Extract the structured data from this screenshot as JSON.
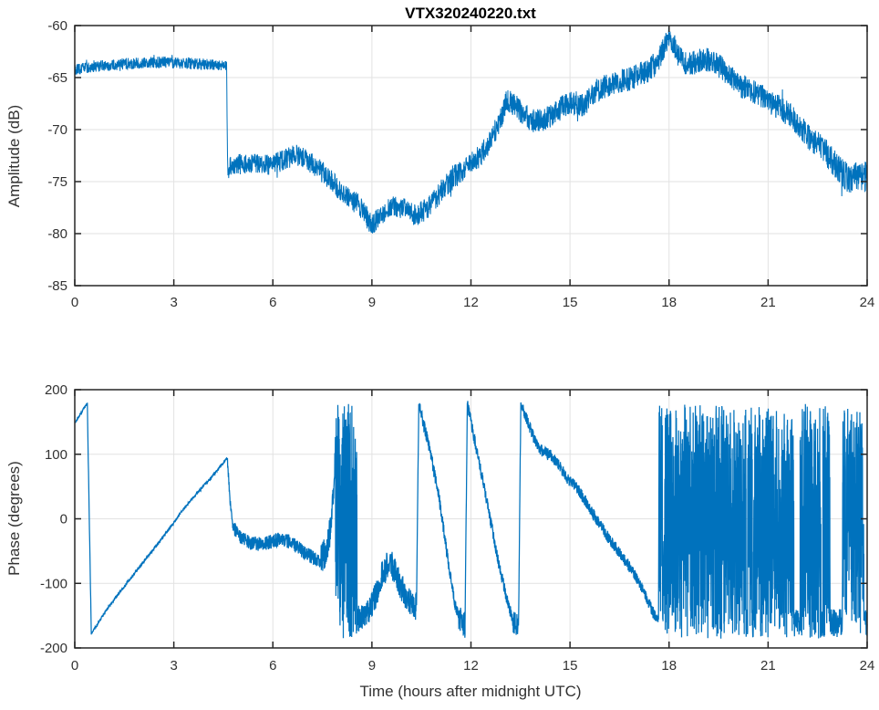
{
  "figure": {
    "title": "VTX320240220.txt",
    "background": "#ffffff",
    "trace_color": "#0072BD",
    "grid_color": "#e2e2e2",
    "axis_color": "#262626",
    "label_color": "#323232"
  },
  "chart_data": [
    {
      "type": "line",
      "title": "VTX320240220.txt",
      "xlabel": "",
      "ylabel": "Amplitude (dB)",
      "xlim": [
        0,
        24
      ],
      "ylim": [
        -85,
        -60
      ],
      "xticks": [
        "0",
        "3",
        "6",
        "9",
        "12",
        "15",
        "18",
        "21",
        "24"
      ],
      "xtick_values": [
        0,
        3,
        6,
        9,
        12,
        15,
        18,
        21,
        24
      ],
      "yticks": [
        "-85",
        "-80",
        "-75",
        "-70",
        "-65",
        "-60"
      ],
      "ytick_values": [
        -85,
        -80,
        -75,
        -70,
        -65,
        -60
      ],
      "grid": true,
      "legend": "none",
      "series_name": "amplitude_dB_vs_hours_UTC",
      "keypoints": [
        [
          0,
          -64.3
        ],
        [
          0.3,
          -64.1
        ],
        [
          0.8,
          -63.9
        ],
        [
          1.4,
          -63.7
        ],
        [
          2.0,
          -63.6
        ],
        [
          2.6,
          -63.5
        ],
        [
          3.2,
          -63.6
        ],
        [
          3.8,
          -63.7
        ],
        [
          4.3,
          -63.8
        ],
        [
          4.6,
          -63.9
        ],
        [
          4.63,
          -74.2
        ],
        [
          4.75,
          -73.4
        ],
        [
          5.2,
          -73.3
        ],
        [
          5.8,
          -73.4
        ],
        [
          6.3,
          -73.0
        ],
        [
          6.7,
          -72.4
        ],
        [
          7.0,
          -72.9
        ],
        [
          7.4,
          -73.8
        ],
        [
          7.8,
          -75.0
        ],
        [
          8.2,
          -76.4
        ],
        [
          8.6,
          -77.2
        ],
        [
          9.0,
          -79.2
        ],
        [
          9.25,
          -78.2
        ],
        [
          9.6,
          -77.3
        ],
        [
          10.0,
          -77.6
        ],
        [
          10.35,
          -78.3
        ],
        [
          10.7,
          -77.5
        ],
        [
          11.1,
          -75.9
        ],
        [
          11.5,
          -74.5
        ],
        [
          12.0,
          -73.4
        ],
        [
          12.4,
          -72.0
        ],
        [
          12.8,
          -69.8
        ],
        [
          13.1,
          -67.1
        ],
        [
          13.3,
          -67.6
        ],
        [
          13.6,
          -68.6
        ],
        [
          13.9,
          -69.2
        ],
        [
          14.2,
          -69.2
        ],
        [
          14.6,
          -68.2
        ],
        [
          15.0,
          -67.4
        ],
        [
          15.4,
          -67.6
        ],
        [
          15.8,
          -66.3
        ],
        [
          16.2,
          -65.7
        ],
        [
          16.6,
          -65.3
        ],
        [
          17.0,
          -64.9
        ],
        [
          17.4,
          -64.2
        ],
        [
          17.7,
          -63.4
        ],
        [
          18.0,
          -61.0
        ],
        [
          18.3,
          -62.9
        ],
        [
          18.55,
          -63.9
        ],
        [
          19.0,
          -63.2
        ],
        [
          19.4,
          -63.5
        ],
        [
          19.8,
          -64.8
        ],
        [
          20.2,
          -65.8
        ],
        [
          20.7,
          -66.6
        ],
        [
          21.2,
          -67.6
        ],
        [
          21.7,
          -68.7
        ],
        [
          22.2,
          -70.6
        ],
        [
          22.7,
          -72.0
        ],
        [
          23.1,
          -73.6
        ],
        [
          23.45,
          -74.8
        ],
        [
          23.7,
          -74.3
        ],
        [
          24,
          -74.6
        ]
      ],
      "noise_envelope_dB": [
        [
          0,
          0.55
        ],
        [
          4.58,
          0.55
        ],
        [
          4.68,
          1.0
        ],
        [
          9,
          1.05
        ],
        [
          13,
          1.15
        ],
        [
          18,
          1.2
        ],
        [
          22,
          1.2
        ],
        [
          24,
          1.5
        ]
      ]
    },
    {
      "type": "line",
      "title": "",
      "xlabel": "Time (hours after midnight UTC)",
      "ylabel": "Phase (degrees)",
      "xlim": [
        0,
        24
      ],
      "ylim": [
        -200,
        200
      ],
      "xticks": [
        "0",
        "3",
        "6",
        "9",
        "12",
        "15",
        "18",
        "21",
        "24"
      ],
      "xtick_values": [
        0,
        3,
        6,
        9,
        12,
        15,
        18,
        21,
        24
      ],
      "yticks": [
        "-200",
        "-100",
        "0",
        "100",
        "200"
      ],
      "ytick_values": [
        -200,
        -100,
        0,
        100,
        200
      ],
      "grid": true,
      "legend": "none",
      "series_name": "phase_degrees_vs_hours_UTC",
      "segments": [
        {
          "kind": "line",
          "noise": 2,
          "pts": [
            [
              0.02,
              150
            ],
            [
              0.38,
              179
            ]
          ]
        },
        {
          "kind": "line",
          "noise": 1,
          "pts": [
            [
              0.38,
              179
            ],
            [
              0.5,
              -178
            ]
          ]
        },
        {
          "kind": "line",
          "noise": 2,
          "pts": [
            [
              0.5,
              -178
            ],
            [
              1.0,
              -138
            ],
            [
              1.8,
              -85
            ],
            [
              2.6,
              -33
            ],
            [
              3.3,
              15
            ],
            [
              3.5,
              28
            ],
            [
              4.1,
              62
            ],
            [
              4.62,
              94
            ]
          ]
        },
        {
          "kind": "line",
          "noise": 6,
          "pts": [
            [
              4.62,
              94
            ],
            [
              4.7,
              30
            ],
            [
              4.78,
              -12
            ]
          ]
        },
        {
          "kind": "line",
          "noise": 11,
          "pts": [
            [
              4.78,
              -12
            ],
            [
              5.0,
              -28
            ],
            [
              5.3,
              -37
            ],
            [
              5.7,
              -40
            ],
            [
              6.0,
              -34
            ],
            [
              6.3,
              -31
            ],
            [
              6.6,
              -38
            ],
            [
              6.9,
              -50
            ],
            [
              7.2,
              -60
            ],
            [
              7.45,
              -66
            ]
          ]
        },
        {
          "kind": "line",
          "noise": 24,
          "pts": [
            [
              7.45,
              -66
            ],
            [
              7.62,
              -48
            ],
            [
              7.75,
              -15
            ],
            [
              7.84,
              45
            ],
            [
              7.9,
              115
            ]
          ]
        },
        {
          "kind": "wrap",
          "t": [
            7.9,
            8.55
          ]
        },
        {
          "kind": "line",
          "noise": 22,
          "pts": [
            [
              8.55,
              -158
            ],
            [
              8.85,
              -146
            ],
            [
              9.05,
              -128
            ],
            [
              9.3,
              -88
            ],
            [
              9.55,
              -66
            ],
            [
              9.8,
              -95
            ],
            [
              10.05,
              -124
            ],
            [
              10.35,
              -136
            ]
          ]
        },
        {
          "kind": "line",
          "noise": 3,
          "pts": [
            [
              10.35,
              -136
            ],
            [
              10.42,
              178
            ]
          ]
        },
        {
          "kind": "line",
          "noise": 10,
          "pts": [
            [
              10.42,
              178
            ],
            [
              10.75,
              108
            ],
            [
              11.05,
              28
            ],
            [
              11.3,
              -62
            ],
            [
              11.5,
              -128
            ],
            [
              11.62,
              -152
            ]
          ]
        },
        {
          "kind": "line",
          "noise": 20,
          "pts": [
            [
              11.62,
              -152
            ],
            [
              11.82,
              -165
            ]
          ]
        },
        {
          "kind": "line",
          "noise": 3,
          "pts": [
            [
              11.82,
              -165
            ],
            [
              11.89,
              178
            ]
          ]
        },
        {
          "kind": "line",
          "noise": 9,
          "pts": [
            [
              11.89,
              178
            ],
            [
              12.15,
              112
            ],
            [
              12.5,
              22
            ],
            [
              12.85,
              -72
            ],
            [
              13.1,
              -126
            ],
            [
              13.27,
              -158
            ]
          ]
        },
        {
          "kind": "line",
          "noise": 18,
          "pts": [
            [
              13.27,
              -158
            ],
            [
              13.44,
              -168
            ]
          ]
        },
        {
          "kind": "line",
          "noise": 3,
          "pts": [
            [
              13.44,
              -168
            ],
            [
              13.51,
              178
            ]
          ]
        },
        {
          "kind": "line",
          "noise": 9,
          "pts": [
            [
              13.51,
              178
            ],
            [
              13.64,
              161
            ],
            [
              13.8,
              139
            ],
            [
              13.97,
              117
            ],
            [
              14.17,
              104
            ],
            [
              14.42,
              99
            ],
            [
              14.67,
              82
            ],
            [
              14.97,
              60
            ],
            [
              15.27,
              44
            ],
            [
              15.57,
              18
            ],
            [
              15.87,
              -6
            ],
            [
              16.17,
              -30
            ],
            [
              16.47,
              -50
            ],
            [
              16.77,
              -72
            ],
            [
              17.07,
              -96
            ],
            [
              17.3,
              -119
            ],
            [
              17.5,
              -144
            ],
            [
              17.68,
              -158
            ]
          ]
        },
        {
          "kind": "wrap",
          "t": [
            7.9,
            8.55
          ],
          "note": "duplicate-guard"
        },
        {
          "kind": "wrap",
          "t": [
            17.7,
            20.33
          ]
        },
        {
          "kind": "quiet",
          "t": [
            20.33,
            20.38
          ]
        },
        {
          "kind": "wrap",
          "t": [
            20.38,
            20.52
          ]
        },
        {
          "kind": "quiet",
          "t": [
            20.52,
            20.56
          ]
        },
        {
          "kind": "wrap",
          "t": [
            20.56,
            21.78
          ]
        },
        {
          "kind": "quiet",
          "t": [
            21.78,
            21.97
          ]
        },
        {
          "kind": "wrap",
          "t": [
            21.97,
            22.6
          ]
        },
        {
          "kind": "quiet",
          "t": [
            22.6,
            22.66
          ]
        },
        {
          "kind": "wrap",
          "t": [
            22.66,
            22.88
          ]
        },
        {
          "kind": "quiet",
          "t": [
            22.88,
            23.25
          ]
        },
        {
          "kind": "wrap",
          "t": [
            23.25,
            23.9
          ]
        },
        {
          "kind": "quiet",
          "t": [
            23.9,
            24
          ]
        }
      ],
      "wrap_range_deg": [
        -186,
        178
      ],
      "quiet_level_deg": -162,
      "quiet_noise_deg": 22
    }
  ]
}
